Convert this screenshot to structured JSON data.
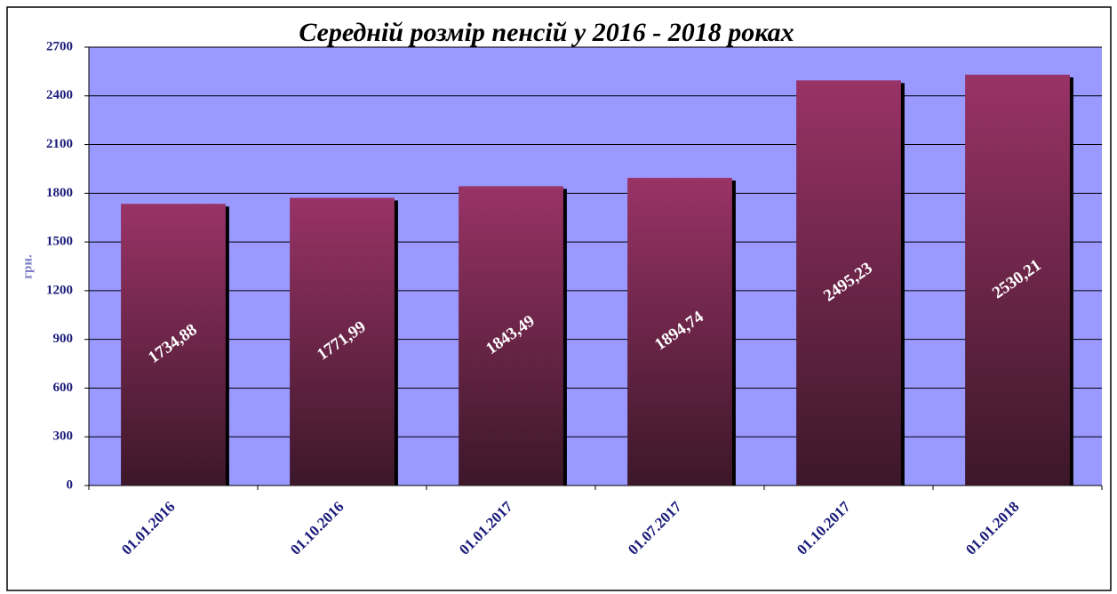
{
  "chart_data": {
    "type": "bar",
    "title": "Середній розмір пенсій у 2016 - 2018 роках",
    "y_label": "грн.",
    "categories": [
      "01.01.2016",
      "01.10.2016",
      "01.01.2017",
      "01.07.2017",
      "01.10.2017",
      "01.01.2018"
    ],
    "values": [
      1734.88,
      1771.99,
      1843.49,
      1894.74,
      2495.23,
      2530.21
    ],
    "value_labels": [
      "1734,88",
      "1771,99",
      "1843,49",
      "1894,74",
      "2495,23",
      "2530,21"
    ],
    "color": "#993366",
    "ylim": [
      0,
      2700
    ],
    "yticks": [
      0,
      300,
      600,
      900,
      1200,
      1500,
      1800,
      2100,
      2400,
      2700
    ],
    "grid": true
  }
}
